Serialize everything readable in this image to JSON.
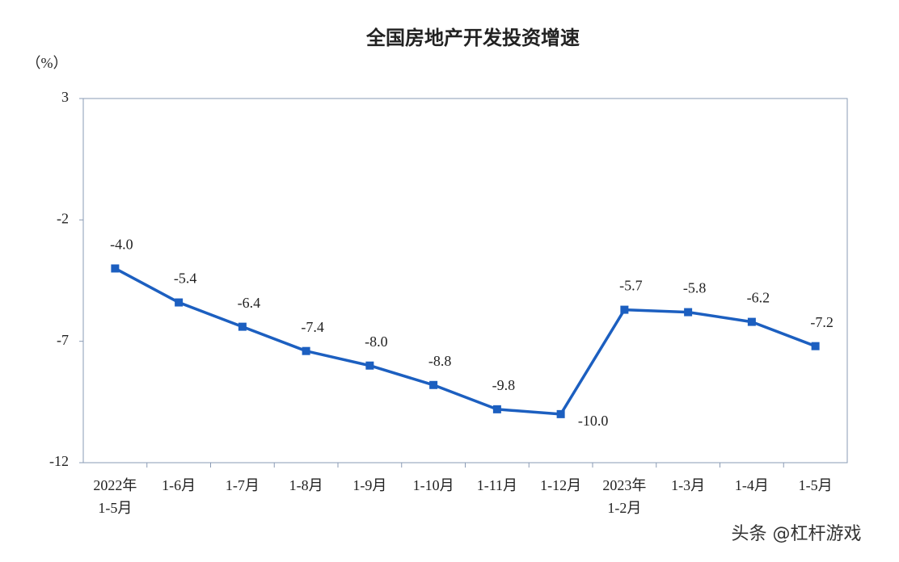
{
  "chart_data": {
    "type": "line",
    "title": "全国房地产开发投资增速",
    "y_label": "（%）",
    "categories": [
      [
        "2022年",
        "1-5月"
      ],
      [
        "1-6月"
      ],
      [
        "1-7月"
      ],
      [
        "1-8月"
      ],
      [
        "1-9月"
      ],
      [
        "1-10月"
      ],
      [
        "1-11月"
      ],
      [
        "1-12月"
      ],
      [
        "2023年",
        "1-2月"
      ],
      [
        "1-3月"
      ],
      [
        "1-4月"
      ],
      [
        "1-5月"
      ]
    ],
    "values": [
      -4.0,
      -5.4,
      -6.4,
      -7.4,
      -8.0,
      -8.8,
      -9.8,
      -10.0,
      -5.7,
      -5.8,
      -6.2,
      -7.2
    ],
    "value_labels": [
      "-4.0",
      "-5.4",
      "-6.4",
      "-7.4",
      "-8.0",
      "-8.8",
      "-9.8",
      "-10.0",
      "-5.7",
      "-5.8",
      "-6.2",
      "-7.2"
    ],
    "color": "#1c5fc0",
    "ylim": [
      -12,
      3
    ],
    "yticks": [
      3,
      -2,
      -7,
      -12
    ],
    "watermark": "头条 @杠杆游戏"
  }
}
